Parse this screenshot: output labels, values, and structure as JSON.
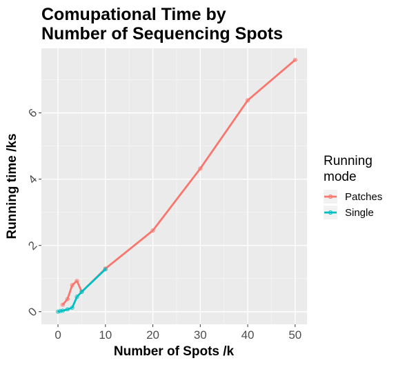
{
  "chart_data": {
    "type": "line",
    "title_lines": [
      "Comupational Time by",
      "Number of Sequencing Spots"
    ],
    "xlabel": "Number of Spots /k",
    "ylabel": "Running time /ks",
    "xlim": [
      -3.5,
      52.5
    ],
    "ylim": [
      -0.38,
      7.95
    ],
    "x_ticks": [
      0,
      10,
      20,
      30,
      40,
      50
    ],
    "y_ticks": [
      0,
      2,
      4,
      6
    ],
    "grid": true,
    "legend": {
      "title_lines": [
        "Running",
        "mode"
      ],
      "placement": "right"
    },
    "series": [
      {
        "name": "Patches",
        "color": "#F8766D",
        "x": [
          1,
          2,
          3,
          4,
          5,
          10,
          20,
          30,
          40,
          50
        ],
        "y": [
          0.21,
          0.38,
          0.8,
          0.93,
          0.6,
          1.3,
          2.45,
          4.32,
          6.38,
          7.6
        ]
      },
      {
        "name": "Single",
        "color": "#00BFC4",
        "x": [
          0,
          0.5,
          1,
          2,
          3,
          4,
          5,
          10
        ],
        "y": [
          0.0,
          0.02,
          0.03,
          0.07,
          0.12,
          0.45,
          0.6,
          1.28
        ]
      }
    ]
  }
}
